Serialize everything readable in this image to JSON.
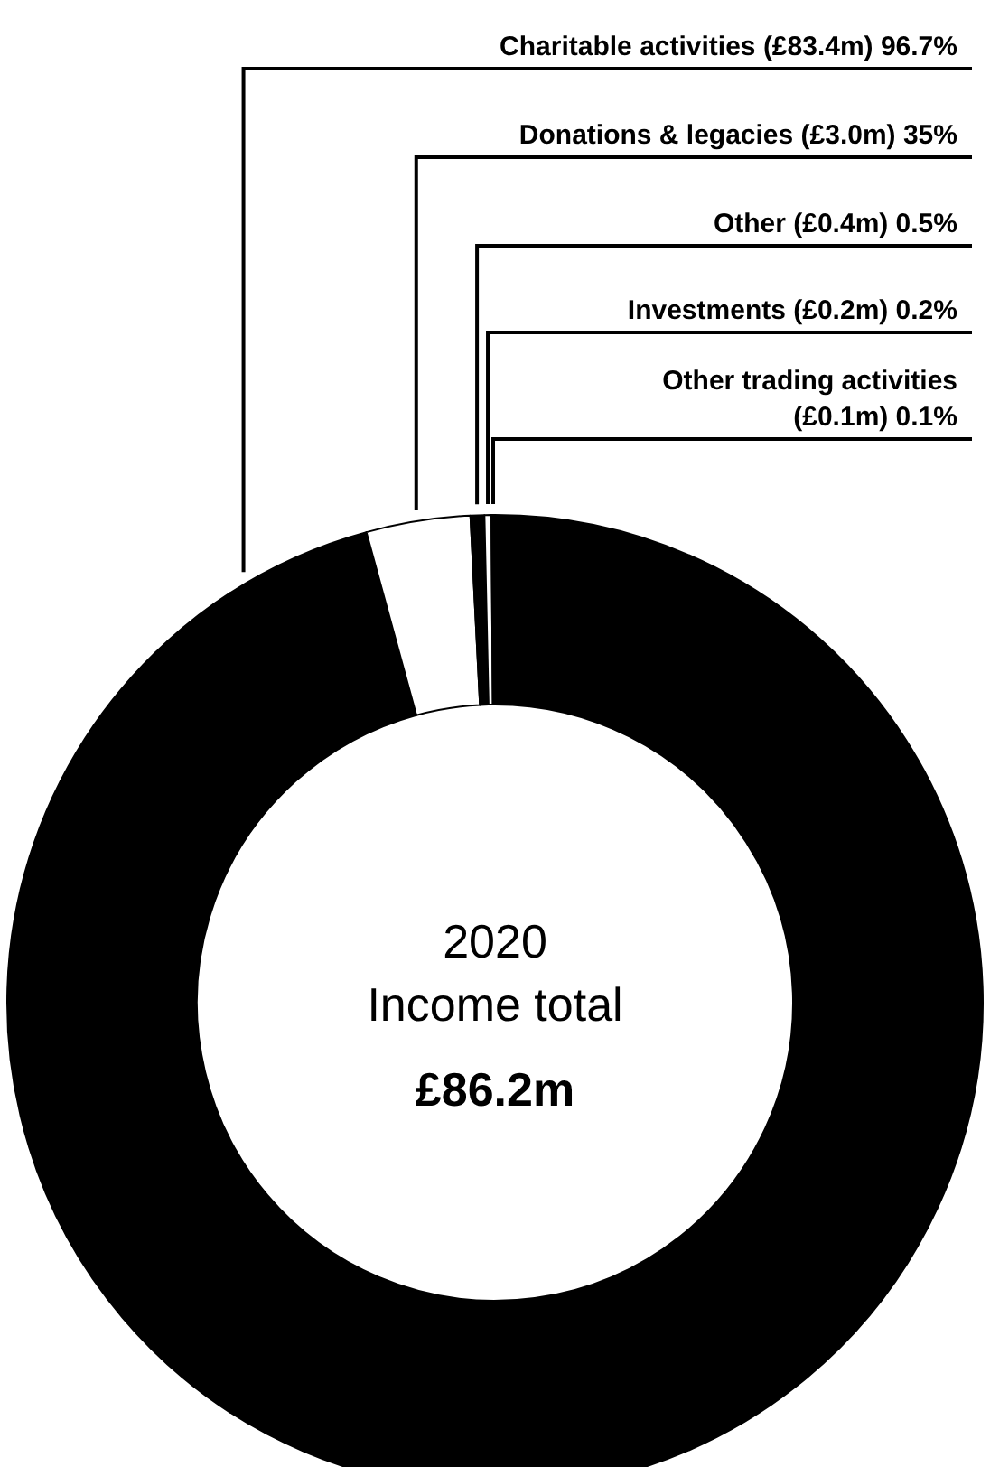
{
  "chart_data": {
    "type": "donut",
    "categories": [
      "Charitable activities",
      "Donations & legacies",
      "Other",
      "Investments",
      "Other trading activities"
    ],
    "values": [
      83.4,
      3.0,
      0.4,
      0.2,
      0.1
    ],
    "value_labels": [
      "(£83.4m)",
      "(£3.0m)",
      "(£0.4m)",
      "(£0.2m)",
      "(£0.1m)"
    ],
    "colors": [
      "#000000",
      "#ffffff",
      "#000000",
      "#ffffff",
      "#000000"
    ],
    "annotations": [
      "2020",
      "Income total",
      "£86.2m",
      "96.7%",
      "35%",
      "0.5%",
      "0.2%",
      "0.1%"
    ],
    "legend": false
  }
}
